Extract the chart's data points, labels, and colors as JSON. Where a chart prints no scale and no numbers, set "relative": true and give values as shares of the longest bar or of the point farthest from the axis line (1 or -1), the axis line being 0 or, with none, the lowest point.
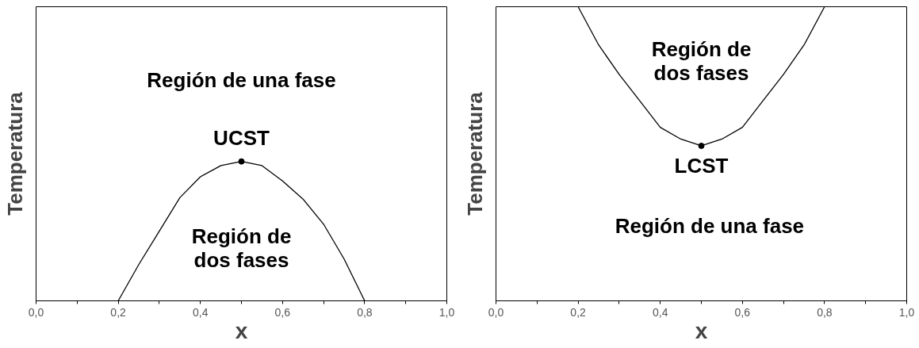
{
  "chart_data": [
    {
      "type": "line",
      "relative": true,
      "xlabel": "x",
      "ylabel": "Temperatura",
      "xlim": [
        0,
        1
      ],
      "xticks": [
        {
          "value": 0,
          "label": "0,0"
        },
        {
          "value": 0.1,
          "label": null
        },
        {
          "value": 0.2,
          "label": "0,2"
        },
        {
          "value": 0.3,
          "label": null
        },
        {
          "value": 0.4,
          "label": "0,4"
        },
        {
          "value": 0.5,
          "label": null
        },
        {
          "value": 0.6,
          "label": "0,6"
        },
        {
          "value": 0.7,
          "label": null
        },
        {
          "value": 0.8,
          "label": "0,8"
        },
        {
          "value": 0.9,
          "label": null
        },
        {
          "value": 1,
          "label": "1,0"
        }
      ],
      "tick_labels": "x",
      "grid": false,
      "line_style": "solid",
      "series": [
        {
          "color": "#000000",
          "x": [
            0.2,
            0.25,
            0.3,
            0.35,
            0.4,
            0.45,
            0.5,
            0.55,
            0.6,
            0.65,
            0.7,
            0.75,
            0.8
          ],
          "values": [
            0,
            0.26,
            0.5,
            0.74,
            0.89,
            0.97,
            1,
            0.97,
            0.86,
            0.73,
            0.55,
            0.3,
            0
          ]
        },
        {
          "type": "scatter",
          "marker": "circle",
          "color": "#000000",
          "x": [
            0.5
          ],
          "values": [
            1
          ]
        }
      ],
      "annotations": [
        "Región de una fase",
        "UCST",
        "Región de\ndos fases"
      ]
    },
    {
      "type": "line",
      "relative": true,
      "xlabel": "x",
      "ylabel": "Temperatura",
      "xlim": [
        0,
        1
      ],
      "xticks": [
        {
          "value": 0,
          "label": "0,0"
        },
        {
          "value": 0.1,
          "label": null
        },
        {
          "value": 0.2,
          "label": "0,2"
        },
        {
          "value": 0.3,
          "label": null
        },
        {
          "value": 0.4,
          "label": "0,4"
        },
        {
          "value": 0.5,
          "label": null
        },
        {
          "value": 0.6,
          "label": "0,6"
        },
        {
          "value": 0.7,
          "label": null
        },
        {
          "value": 0.8,
          "label": "0,8"
        },
        {
          "value": 0.9,
          "label": null
        },
        {
          "value": 1,
          "label": "1,0"
        }
      ],
      "tick_labels": "x",
      "grid": false,
      "line_style": "solid",
      "series": [
        {
          "color": "#000000",
          "x": [
            0.2,
            0.25,
            0.3,
            0.35,
            0.4,
            0.45,
            0.5,
            0.55,
            0.6,
            0.65,
            0.7,
            0.75,
            0.8
          ],
          "values": [
            1,
            0.87,
            0.77,
            0.68,
            0.59,
            0.55,
            0.527,
            0.55,
            0.59,
            0.68,
            0.77,
            0.87,
            1
          ]
        },
        {
          "type": "scatter",
          "marker": "circle",
          "color": "#000000",
          "x": [
            0.5
          ],
          "values": [
            0.527
          ]
        }
      ],
      "annotations": [
        "Región de\ndos fases",
        "LCST",
        "Región de una fase"
      ]
    }
  ]
}
